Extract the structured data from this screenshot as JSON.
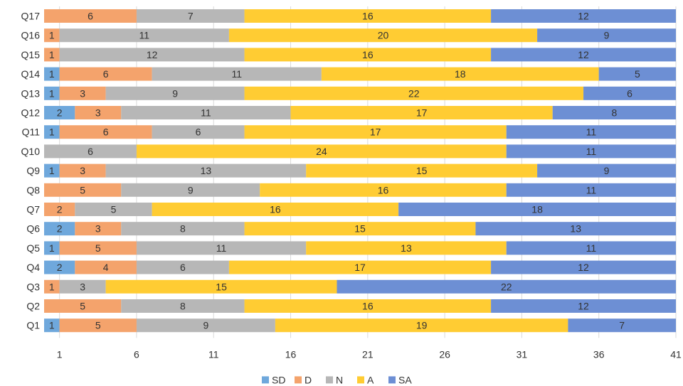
{
  "chart_data": {
    "type": "bar",
    "orientation": "horizontal",
    "stacked": true,
    "categories": [
      "Q1",
      "Q2",
      "Q3",
      "Q4",
      "Q5",
      "Q6",
      "Q7",
      "Q8",
      "Q9",
      "Q10",
      "Q11",
      "Q12",
      "Q13",
      "Q14",
      "Q15",
      "Q16",
      "Q17"
    ],
    "series": [
      {
        "name": "SD",
        "color": "#6fa8dc",
        "values": [
          1,
          0,
          0,
          2,
          1,
          2,
          0,
          0,
          1,
          0,
          1,
          2,
          1,
          1,
          0,
          0,
          0
        ]
      },
      {
        "name": "D",
        "color": "#f4a36c",
        "values": [
          5,
          5,
          1,
          4,
          5,
          3,
          2,
          5,
          3,
          0,
          6,
          3,
          3,
          6,
          1,
          1,
          6
        ]
      },
      {
        "name": "N",
        "color": "#b7b7b7",
        "values": [
          9,
          8,
          3,
          6,
          11,
          8,
          5,
          9,
          13,
          6,
          6,
          11,
          9,
          11,
          12,
          11,
          7
        ]
      },
      {
        "name": "A",
        "color": "#ffcc33",
        "values": [
          19,
          16,
          15,
          17,
          13,
          15,
          16,
          16,
          15,
          24,
          17,
          17,
          22,
          18,
          16,
          20,
          16
        ]
      },
      {
        "name": "SA",
        "color": "#6d8fd4",
        "values": [
          7,
          12,
          22,
          12,
          11,
          13,
          18,
          11,
          9,
          11,
          11,
          8,
          6,
          5,
          12,
          9,
          12
        ]
      }
    ],
    "xticks": [
      1,
      6,
      11,
      16,
      21,
      26,
      31,
      36,
      41
    ],
    "xlim": [
      0,
      41
    ],
    "grid": true,
    "legend": "bottom",
    "title": "",
    "xlabel": "",
    "ylabel": ""
  }
}
